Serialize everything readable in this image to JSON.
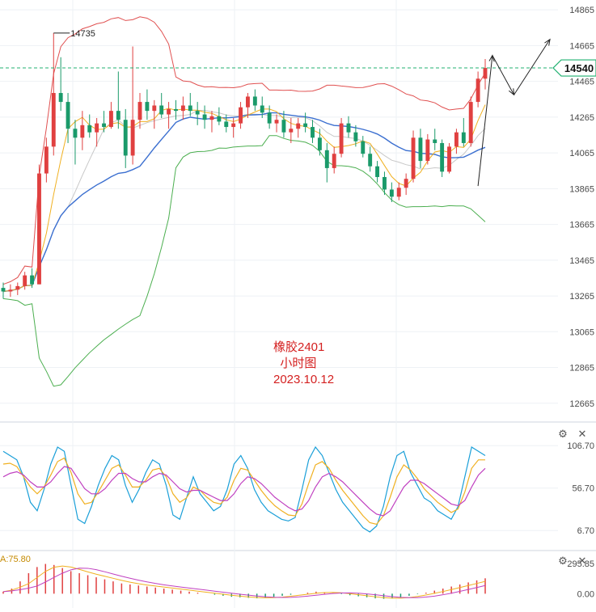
{
  "chart_data": [
    {
      "type": "candlestick",
      "title_lines": [
        "橡胶2401",
        "小时图",
        "2023.10.12"
      ],
      "price_ticks": [
        "14865",
        "14665",
        "14465",
        "14265",
        "14065",
        "13865",
        "13665",
        "13465",
        "13265",
        "13065",
        "12865",
        "12665"
      ],
      "ylim": [
        12560,
        14920
      ],
      "last_price": "14540",
      "high_marker": "14735",
      "colors": {
        "up": "#e04040",
        "down": "#1a9a6a",
        "upper_band": "#e05050",
        "lower_band": "#4caf50",
        "mid": "#3b6fd0",
        "fast": "#f0b020",
        "fast2": "#c8c8c8",
        "last_price_line": "#20b070"
      },
      "candles_ohlc": [
        [
          13310,
          13340,
          13250,
          13290
        ],
        [
          13290,
          13330,
          13260,
          13300
        ],
        [
          13300,
          13340,
          13270,
          13320
        ],
        [
          13320,
          13400,
          13300,
          13380
        ],
        [
          13380,
          13420,
          13310,
          13330
        ],
        [
          13330,
          14000,
          13330,
          13950
        ],
        [
          13950,
          14150,
          13900,
          14100
        ],
        [
          14100,
          14735,
          14050,
          14400
        ],
        [
          14400,
          14600,
          14300,
          14350
        ],
        [
          14350,
          14400,
          14120,
          14200
        ],
        [
          14200,
          14250,
          14000,
          14150
        ],
        [
          14150,
          14300,
          14080,
          14220
        ],
        [
          14220,
          14280,
          14150,
          14180
        ],
        [
          14180,
          14260,
          14100,
          14230
        ],
        [
          14230,
          14300,
          14180,
          14210
        ],
        [
          14210,
          14350,
          14200,
          14300
        ],
        [
          14300,
          14520,
          14200,
          14250
        ],
        [
          14250,
          14310,
          13980,
          14050
        ],
        [
          14050,
          14660,
          14000,
          14250
        ],
        [
          14250,
          14400,
          14200,
          14350
        ],
        [
          14350,
          14420,
          14250,
          14300
        ],
        [
          14300,
          14360,
          14200,
          14330
        ],
        [
          14330,
          14400,
          14260,
          14280
        ],
        [
          14280,
          14350,
          14200,
          14310
        ],
        [
          14310,
          14360,
          14250,
          14300
        ],
        [
          14300,
          14380,
          14250,
          14330
        ],
        [
          14330,
          14400,
          14270,
          14300
        ],
        [
          14300,
          14350,
          14220,
          14280
        ],
        [
          14280,
          14330,
          14200,
          14250
        ],
        [
          14250,
          14300,
          14180,
          14270
        ],
        [
          14270,
          14320,
          14220,
          14240
        ],
        [
          14240,
          14280,
          14180,
          14210
        ],
        [
          14210,
          14260,
          14150,
          14230
        ],
        [
          14230,
          14350,
          14200,
          14320
        ],
        [
          14320,
          14400,
          14260,
          14380
        ],
        [
          14380,
          14420,
          14300,
          14330
        ],
        [
          14330,
          14380,
          14260,
          14290
        ],
        [
          14290,
          14330,
          14200,
          14230
        ],
        [
          14230,
          14280,
          14180,
          14250
        ],
        [
          14250,
          14300,
          14150,
          14180
        ],
        [
          14180,
          14260,
          14120,
          14200
        ],
        [
          14200,
          14260,
          14150,
          14230
        ],
        [
          14230,
          14290,
          14180,
          14210
        ],
        [
          14210,
          14250,
          14120,
          14150
        ],
        [
          14150,
          14200,
          14050,
          14080
        ],
        [
          14080,
          14120,
          13900,
          13980
        ],
        [
          13980,
          14100,
          13950,
          14060
        ],
        [
          14060,
          14260,
          14040,
          14230
        ],
        [
          14230,
          14270,
          14150,
          14180
        ],
        [
          14180,
          14220,
          14100,
          14130
        ],
        [
          14130,
          14160,
          14040,
          14060
        ],
        [
          14060,
          14100,
          13960,
          13990
        ],
        [
          13990,
          14020,
          13900,
          13930
        ],
        [
          13930,
          13960,
          13830,
          13860
        ],
        [
          13860,
          13900,
          13790,
          13820
        ],
        [
          13820,
          13900,
          13800,
          13870
        ],
        [
          13870,
          13950,
          13830,
          13920
        ],
        [
          13920,
          14190,
          13900,
          14150
        ],
        [
          14150,
          14200,
          13980,
          14020
        ],
        [
          14020,
          14170,
          14000,
          14140
        ],
        [
          14140,
          14200,
          14080,
          14120
        ],
        [
          14120,
          14140,
          13930,
          13960
        ],
        [
          13960,
          14120,
          13950,
          14100
        ],
        [
          14100,
          14200,
          14060,
          14180
        ],
        [
          14180,
          14260,
          14100,
          14120
        ],
        [
          14120,
          14380,
          14100,
          14350
        ],
        [
          14350,
          14520,
          14320,
          14480
        ],
        [
          14480,
          14590,
          14420,
          14540
        ]
      ],
      "annotations": [
        {
          "type": "arrow",
          "points": [
            [
              66,
              13880
            ],
            [
              68,
              14610
            ]
          ]
        },
        {
          "type": "arrow",
          "points": [
            [
              68,
              14610
            ],
            [
              71,
              14390
            ]
          ]
        },
        {
          "type": "arrow",
          "points": [
            [
              71,
              14390
            ],
            [
              76,
              14700
            ]
          ]
        }
      ]
    },
    {
      "type": "line",
      "name": "oscillator",
      "ticks": [
        "106.70",
        "56.70",
        "6.70"
      ],
      "ylim": [
        -15,
        125
      ],
      "series": [
        {
          "color": "#1a9fd8",
          "values": [
            100,
            95,
            90,
            70,
            40,
            30,
            55,
            85,
            105,
            100,
            60,
            20,
            15,
            35,
            60,
            80,
            95,
            90,
            60,
            40,
            55,
            75,
            90,
            85,
            60,
            25,
            20,
            45,
            70,
            50,
            40,
            30,
            35,
            55,
            85,
            95,
            80,
            55,
            40,
            30,
            25,
            20,
            18,
            22,
            55,
            90,
            105,
            95,
            75,
            55,
            40,
            30,
            20,
            10,
            5,
            12,
            35,
            70,
            95,
            100,
            75,
            60,
            45,
            40,
            30,
            25,
            20,
            35,
            70,
            105,
            100,
            95
          ]
        },
        {
          "color": "#f0b020",
          "values": [
            85,
            86,
            82,
            70,
            58,
            50,
            58,
            72,
            88,
            92,
            75,
            50,
            38,
            40,
            52,
            66,
            80,
            84,
            72,
            58,
            58,
            66,
            78,
            80,
            70,
            50,
            40,
            45,
            58,
            54,
            46,
            40,
            38,
            46,
            66,
            80,
            78,
            66,
            54,
            44,
            36,
            30,
            25,
            24,
            38,
            62,
            84,
            88,
            80,
            66,
            54,
            44,
            34,
            24,
            16,
            14,
            24,
            46,
            70,
            84,
            78,
            68,
            56,
            48,
            40,
            34,
            28,
            32,
            52,
            80,
            90,
            90
          ]
        },
        {
          "color": "#c040c0",
          "values": [
            70,
            74,
            76,
            72,
            64,
            58,
            58,
            64,
            74,
            82,
            80,
            68,
            56,
            50,
            50,
            56,
            66,
            74,
            74,
            68,
            64,
            64,
            70,
            74,
            72,
            64,
            56,
            52,
            54,
            54,
            50,
            46,
            42,
            42,
            50,
            62,
            70,
            68,
            62,
            54,
            46,
            40,
            34,
            30,
            32,
            42,
            58,
            70,
            74,
            70,
            64,
            56,
            48,
            40,
            32,
            26,
            24,
            30,
            44,
            58,
            66,
            66,
            62,
            56,
            50,
            44,
            38,
            36,
            42,
            58,
            72,
            80
          ]
        }
      ]
    },
    {
      "type": "bar",
      "name": "macd",
      "label": "A:75.80",
      "ticks": [
        "295.85",
        "0.00"
      ],
      "ylim": [
        -60,
        310
      ],
      "values": [
        20,
        50,
        120,
        200,
        260,
        290,
        280,
        250,
        220,
        200,
        180,
        160,
        140,
        120,
        100,
        90,
        80,
        70,
        60,
        50,
        40,
        30,
        20,
        10,
        0,
        -10,
        -20,
        -30,
        -35,
        -40,
        -45,
        -40,
        -30,
        -20,
        -10,
        0,
        10,
        20,
        15,
        5,
        -5,
        -15,
        -25,
        -35,
        -45,
        -50,
        -45,
        -35,
        -20,
        -5,
        10,
        30,
        50,
        70,
        90,
        110,
        130,
        150
      ]
    }
  ]
}
